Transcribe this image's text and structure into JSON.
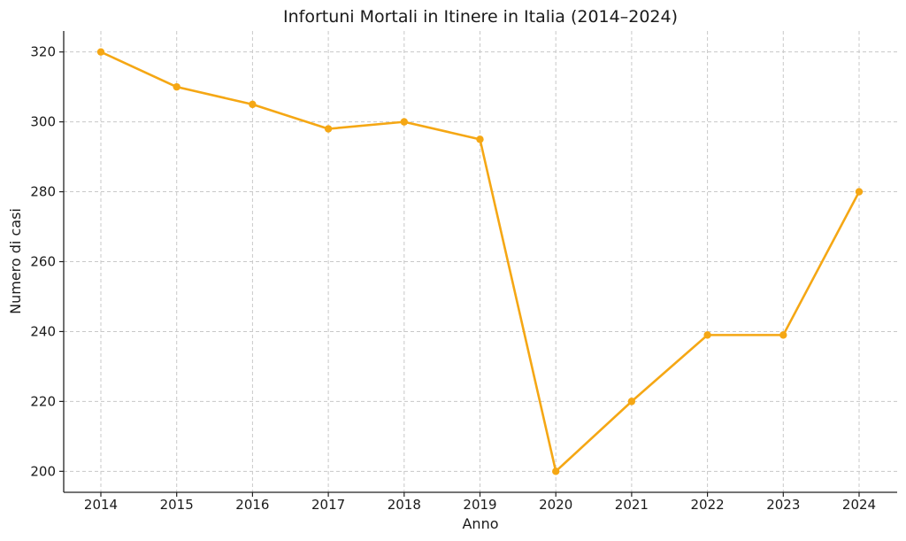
{
  "chart_data": {
    "type": "line",
    "title": "Infortuni Mortali in Itinere in Italia (2014–2024)",
    "xlabel": "Anno",
    "ylabel": "Numero di casi",
    "x": [
      "2014",
      "2015",
      "2016",
      "2017",
      "2018",
      "2019",
      "2020",
      "2021",
      "2022",
      "2023",
      "2024"
    ],
    "series": [
      {
        "values": [
          320,
          310,
          305,
          298,
          300,
          295,
          200,
          220,
          239,
          239,
          280
        ],
        "color": "#f5a714"
      }
    ],
    "yticks": [
      200,
      220,
      240,
      260,
      280,
      300,
      320
    ],
    "ylim": [
      194,
      326
    ],
    "grid": true,
    "marker": "circle"
  }
}
